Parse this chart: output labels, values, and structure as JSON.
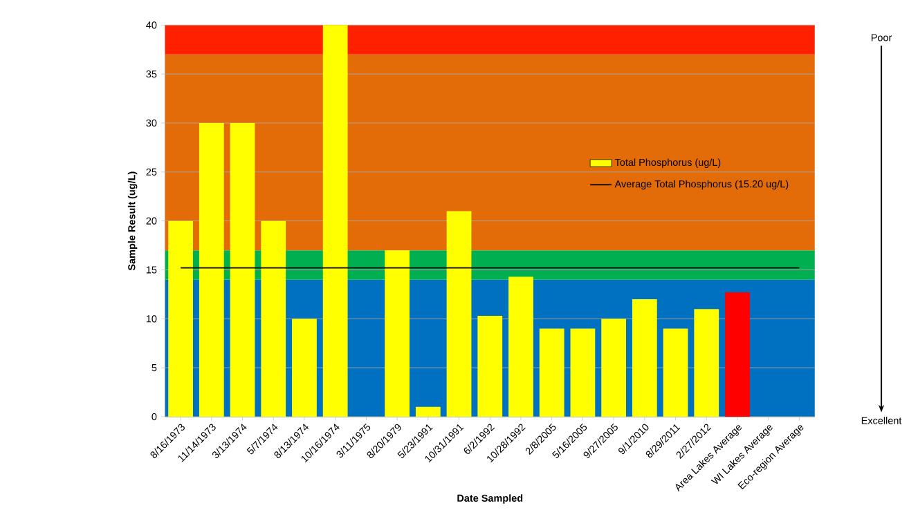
{
  "chart_data": {
    "type": "bar",
    "xlabel": "Date Sampled",
    "ylabel": "Sample Result (ug/L)",
    "categories": [
      "8/16/1973",
      "11/14/1973",
      "3/13/1974",
      "5/7/1974",
      "8/13/1974",
      "10/16/1974",
      "3/11/1975",
      "8/20/1979",
      "5/23/1991",
      "10/31/1991",
      "6/2/1992",
      "10/28/1992",
      "2/8/2005",
      "5/16/2005",
      "9/27/2005",
      "9/1/2010",
      "8/29/2011",
      "2/27/2012",
      "Area Lakes Average",
      "WI Lakes Average",
      "Eco-region Average"
    ],
    "series": [
      {
        "name": "Total Phosphorus (ug/L)",
        "color": "#ffff00",
        "colors": [
          "#ffff00",
          "#ffff00",
          "#ffff00",
          "#ffff00",
          "#ffff00",
          "#ffff00",
          "#ffff00",
          "#ffff00",
          "#ffff00",
          "#ffff00",
          "#ffff00",
          "#ffff00",
          "#ffff00",
          "#ffff00",
          "#ffff00",
          "#ffff00",
          "#ffff00",
          "#ffff00",
          "#ff0000",
          "#ffff00",
          "#ffff00"
        ],
        "values": [
          20,
          30,
          30,
          20,
          10,
          40,
          null,
          17,
          1,
          21,
          10.3,
          14.3,
          9,
          9,
          10,
          12,
          9,
          11,
          12.7,
          null,
          null
        ]
      },
      {
        "type": "line",
        "name": "Average Total Phosphorus (15.20 ug/L)",
        "color": "#000000",
        "values": [
          15.2,
          15.2,
          15.2,
          15.2,
          15.2,
          15.2,
          15.2,
          15.2,
          15.2,
          15.2,
          15.2,
          15.2,
          15.2,
          15.2,
          15.2,
          15.2,
          15.2,
          15.2,
          15.2,
          15.2,
          15.2
        ]
      }
    ],
    "ylim": [
      0,
      40
    ],
    "yticks": [
      0,
      5,
      10,
      15,
      20,
      25,
      30,
      35,
      40
    ],
    "grid": "y",
    "legend": "right",
    "bands": [
      {
        "axis": "y",
        "from": 0,
        "to": 14,
        "color": "#0070c0"
      },
      {
        "axis": "y",
        "from": 14,
        "to": 17,
        "color": "#00b050"
      },
      {
        "axis": "y",
        "from": 17,
        "to": 37,
        "color": "#e36c09"
      },
      {
        "axis": "y",
        "from": 37,
        "to": 40,
        "color": "#ff2000"
      }
    ],
    "annotations": [
      "Poor",
      "Excellent"
    ]
  }
}
